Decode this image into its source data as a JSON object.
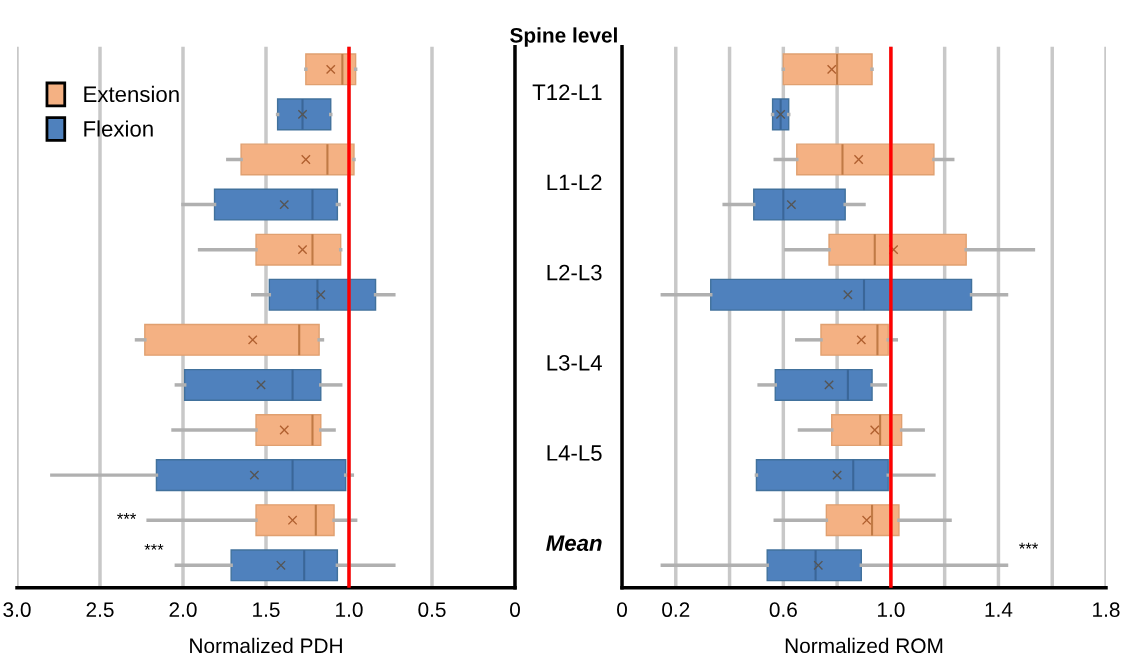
{
  "chart_data": [
    {
      "type": "box",
      "orientation": "horizontal",
      "xlabel": "Normalized PDH",
      "tick_labels": "x",
      "xlim": [
        3.0,
        0
      ],
      "xticks": [
        {
          "value": 3.0,
          "label": "3.0"
        },
        {
          "value": 2.5,
          "label": "2.5"
        },
        {
          "value": 2.0,
          "label": "2.0"
        },
        {
          "value": 1.5,
          "label": "1.5"
        },
        {
          "value": 1.0,
          "label": "1.0"
        },
        {
          "value": 0.5,
          "label": "0.5"
        },
        0
      ],
      "grid": "x",
      "legend": "top left",
      "series": [
        {
          "name": "Extension",
          "color": "#f4b183",
          "boxes": [
            {
              "low": 0.96,
              "q1": 0.96,
              "median": 1.04,
              "q3": 1.26,
              "high": 1.26,
              "mean": 1.11
            },
            {
              "low": 0.97,
              "q1": 0.97,
              "median": 1.13,
              "q3": 1.65,
              "high": 1.73,
              "mean": 1.26
            },
            {
              "low": 1.05,
              "q1": 1.05,
              "median": 1.22,
              "q3": 1.56,
              "high": 1.9,
              "mean": 1.28
            },
            {
              "low": 1.16,
              "q1": 1.18,
              "median": 1.3,
              "q3": 2.23,
              "high": 2.28,
              "mean": 1.58
            },
            {
              "low": 1.09,
              "q1": 1.17,
              "median": 1.22,
              "q3": 1.56,
              "high": 2.06,
              "mean": 1.39
            },
            {
              "low": 0.96,
              "q1": 1.09,
              "median": 1.2,
              "q3": 1.56,
              "high": 2.21,
              "mean": 1.34
            }
          ]
        },
        {
          "name": "Flexion",
          "color": "#4f81bd",
          "boxes": [
            {
              "low": 1.11,
              "q1": 1.11,
              "median": 1.28,
              "q3": 1.43,
              "high": 1.43,
              "mean": 1.28
            },
            {
              "low": 1.06,
              "q1": 1.07,
              "median": 1.22,
              "q3": 1.81,
              "high": 2.0,
              "mean": 1.39
            },
            {
              "low": 0.73,
              "q1": 0.84,
              "median": 1.19,
              "q3": 1.48,
              "high": 1.58,
              "mean": 1.17
            },
            {
              "low": 1.05,
              "q1": 1.17,
              "median": 1.34,
              "q3": 1.99,
              "high": 2.04,
              "mean": 1.53
            },
            {
              "low": 0.98,
              "q1": 1.02,
              "median": 1.34,
              "q3": 2.16,
              "high": 2.79,
              "mean": 1.57
            },
            {
              "low": 0.73,
              "q1": 1.07,
              "median": 1.27,
              "q3": 1.71,
              "high": 2.04,
              "mean": 1.41
            }
          ]
        }
      ],
      "ref_lines": [
        {
          "axis": "x",
          "value": 1.0,
          "color": "#ff0000"
        }
      ],
      "annotations": [
        "***",
        "***"
      ]
    },
    {
      "type": "box",
      "orientation": "horizontal",
      "xlabel": "Normalized ROM",
      "ylabel": "Spine level",
      "categories": [
        "T12-L1",
        "L1-L2",
        "L2-L3",
        "L3-L4",
        "L4-L5",
        "Mean"
      ],
      "xlim": [
        0,
        1.8
      ],
      "xticks": [
        0,
        0.2,
        {
          "value": 0.4,
          "label": null
        },
        0.6,
        {
          "value": 0.8,
          "label": null
        },
        {
          "value": 1.0,
          "label": "1.0"
        },
        {
          "value": 1.2,
          "label": null
        },
        1.4,
        {
          "value": 1.6,
          "label": null
        },
        1.8
      ],
      "grid": "x",
      "series": [
        {
          "color": "#f4b183",
          "boxes": [
            {
              "low": 0.6,
              "q1": 0.6,
              "median": 0.8,
              "q3": 0.93,
              "high": 0.93,
              "mean": 0.78
            },
            {
              "low": 0.57,
              "q1": 0.65,
              "median": 0.82,
              "q3": 1.16,
              "high": 1.23,
              "mean": 0.88
            },
            {
              "low": 0.61,
              "q1": 0.77,
              "median": 0.94,
              "q3": 1.28,
              "high": 1.53,
              "mean": 1.01
            },
            {
              "low": 0.65,
              "q1": 0.74,
              "median": 0.95,
              "q3": 0.99,
              "high": 1.02,
              "mean": 0.89
            },
            {
              "low": 0.66,
              "q1": 0.78,
              "median": 0.96,
              "q3": 1.04,
              "high": 1.12,
              "mean": 0.94
            },
            {
              "low": 0.57,
              "q1": 0.76,
              "median": 0.93,
              "q3": 1.03,
              "high": 1.22,
              "mean": 0.91
            }
          ]
        },
        {
          "color": "#4f81bd",
          "boxes": [
            {
              "low": 0.56,
              "q1": 0.56,
              "median": 0.59,
              "q3": 0.62,
              "high": 0.62,
              "mean": 0.59
            },
            {
              "low": 0.38,
              "q1": 0.49,
              "median": 0.6,
              "q3": 0.83,
              "high": 0.9,
              "mean": 0.63
            },
            {
              "low": 0.15,
              "q1": 0.33,
              "median": 0.9,
              "q3": 1.3,
              "high": 1.43,
              "mean": 0.84
            },
            {
              "low": 0.51,
              "q1": 0.57,
              "median": 0.84,
              "q3": 0.93,
              "high": 0.98,
              "mean": 0.77
            },
            {
              "low": 0.5,
              "q1": 0.5,
              "median": 0.86,
              "q3": 0.99,
              "high": 1.16,
              "mean": 0.8
            },
            {
              "low": 0.15,
              "q1": 0.54,
              "median": 0.72,
              "q3": 0.89,
              "high": 1.43,
              "mean": 0.73
            }
          ]
        }
      ],
      "ref_lines": [
        {
          "axis": "x",
          "value": 1.0,
          "color": "#ff0000"
        }
      ],
      "annotations": [
        "***"
      ]
    }
  ]
}
